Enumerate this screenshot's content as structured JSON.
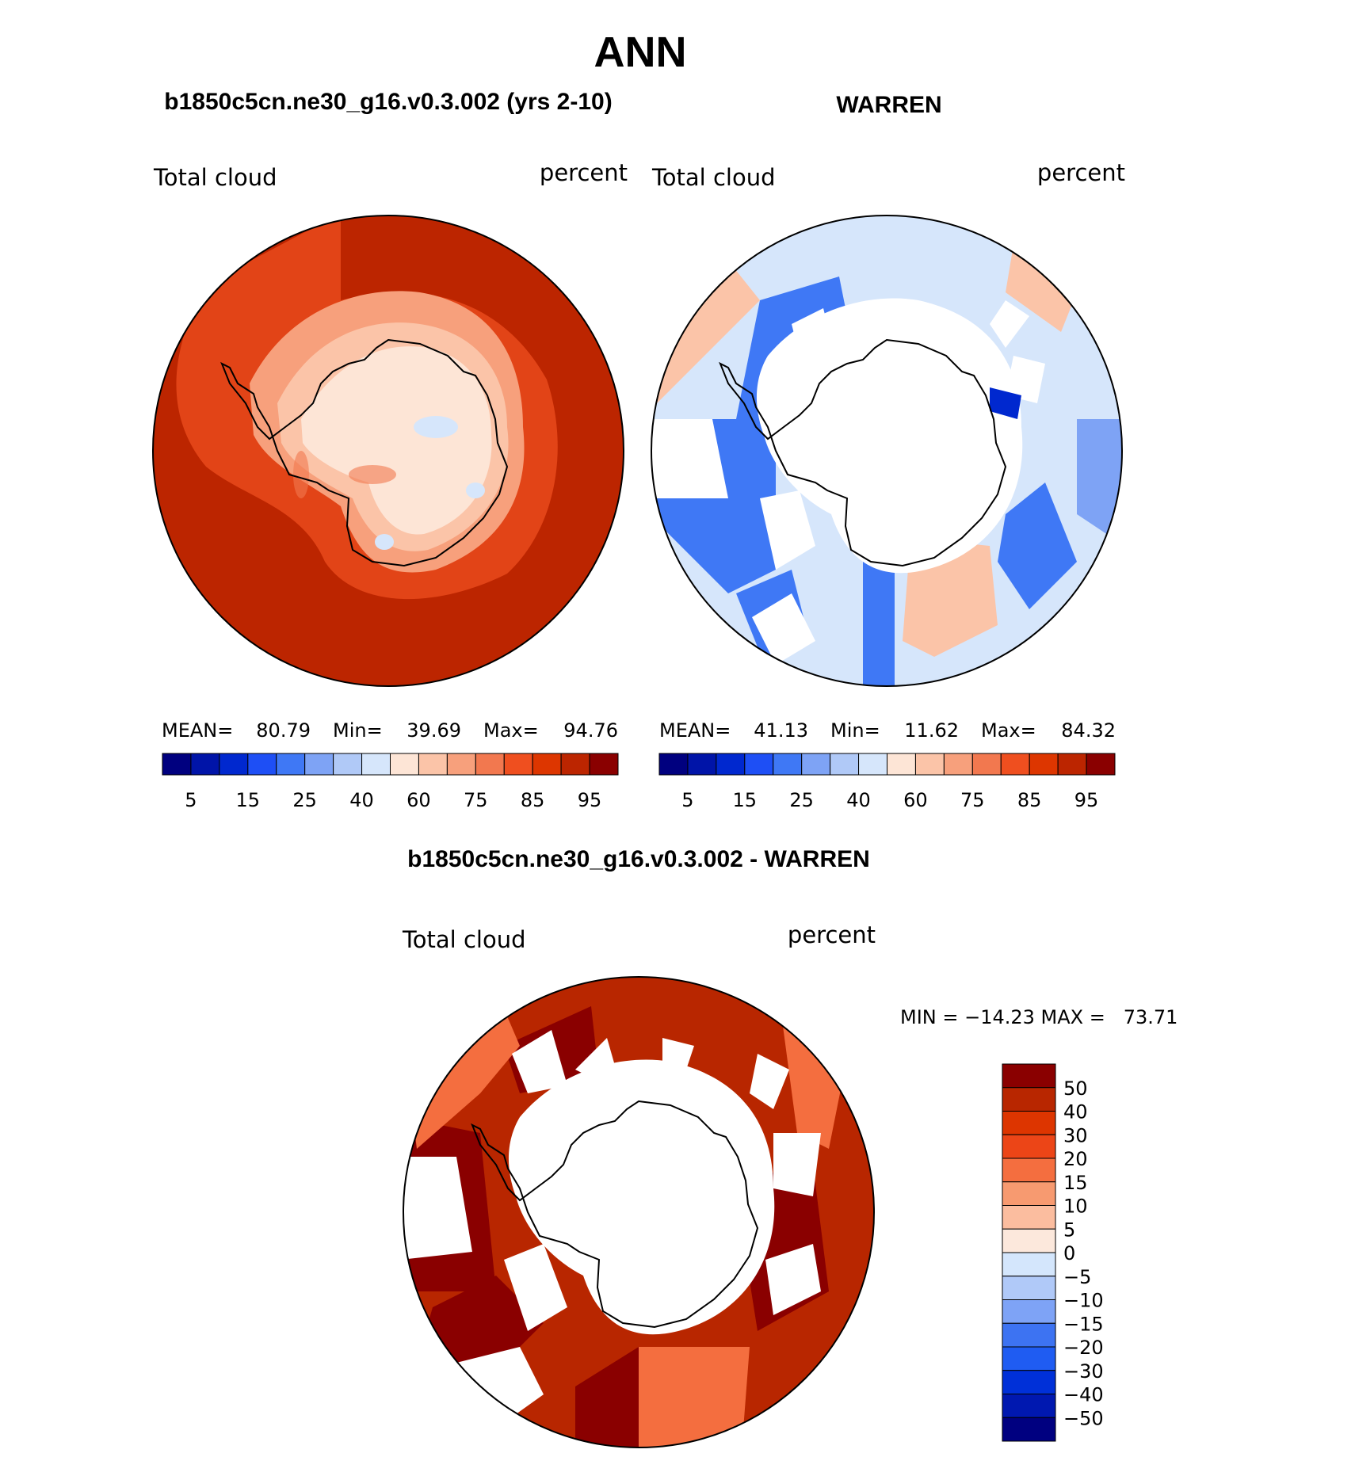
{
  "main_title": "ANN",
  "colors": {
    "abs_scale": [
      "#00007f",
      "#0014a8",
      "#0028cf",
      "#1e4ff5",
      "#3f78f5",
      "#7ea3f5",
      "#b0c9f7",
      "#d6e6fb",
      "#fde5d6",
      "#fbc4a8",
      "#f7a07c",
      "#f2784f",
      "#ef4f1f",
      "#dd3600",
      "#bc2500",
      "#8a0000"
    ],
    "diff_scale": [
      "#000080",
      "#0018b0",
      "#0030d8",
      "#1f5cf2",
      "#3d73f2",
      "#7ea3f6",
      "#b0c9f8",
      "#d4e6fc",
      "#fce8dc",
      "#fbbd9f",
      "#f79a70",
      "#f46e3f",
      "#ec4517",
      "#dd3500",
      "#b82600",
      "#8a0000"
    ],
    "coastline": "#000000"
  },
  "panels": [
    {
      "title": "b1850c5cn.ne30_g16.v0.3.002 (yrs 2-10)",
      "left_label": "Total cloud",
      "right_label": "percent",
      "stats": {
        "mean_label": "MEAN=",
        "mean": "80.79",
        "min_label": "Min=",
        "min": "39.69",
        "max_label": "Max=",
        "max": "94.76"
      },
      "colorbar_labels": [
        "5",
        "15",
        "25",
        "40",
        "60",
        "75",
        "85",
        "95"
      ]
    },
    {
      "title": "WARREN",
      "left_label": "Total cloud",
      "right_label": "percent",
      "stats": {
        "mean_label": "MEAN=",
        "mean": "41.13",
        "min_label": "Min=",
        "min": "11.62",
        "max_label": "Max=",
        "max": "84.32"
      },
      "colorbar_labels": [
        "5",
        "15",
        "25",
        "40",
        "60",
        "75",
        "85",
        "95"
      ]
    },
    {
      "title": "b1850c5cn.ne30_g16.v0.3.002 - WARREN",
      "left_label": "Total cloud",
      "right_label": "percent",
      "minmax": "MIN = −14.23 MAX =   73.71",
      "colorbar_labels": [
        "50",
        "40",
        "30",
        "20",
        "15",
        "10",
        "5",
        "0",
        "−5",
        "−10",
        "−15",
        "−20",
        "−30",
        "−40",
        "−50"
      ]
    }
  ],
  "chart_data": [
    {
      "type": "heatmap",
      "projection": "south polar stereographic",
      "title": "b1850c5cn.ne30_g16.v0.3.002 (yrs 2-10)",
      "variable": "Total cloud",
      "units": "percent",
      "mean": 80.79,
      "min": 39.69,
      "max": 94.76,
      "contour_levels": [
        5,
        10,
        15,
        20,
        25,
        30,
        40,
        50,
        60,
        70,
        75,
        80,
        85,
        90,
        95
      ]
    },
    {
      "type": "heatmap",
      "projection": "south polar stereographic",
      "title": "WARREN",
      "variable": "Total cloud",
      "units": "percent",
      "mean": 41.13,
      "min": 11.62,
      "max": 84.32,
      "contour_levels": [
        5,
        10,
        15,
        20,
        25,
        30,
        40,
        50,
        60,
        70,
        75,
        80,
        85,
        90,
        95
      ]
    },
    {
      "type": "heatmap",
      "projection": "south polar stereographic",
      "title": "b1850c5cn.ne30_g16.v0.3.002 - WARREN",
      "variable": "Total cloud",
      "units": "percent",
      "min": -14.23,
      "max": 73.71,
      "contour_levels": [
        -50,
        -40,
        -30,
        -20,
        -15,
        -10,
        -5,
        0,
        5,
        10,
        15,
        20,
        30,
        40,
        50
      ]
    }
  ]
}
